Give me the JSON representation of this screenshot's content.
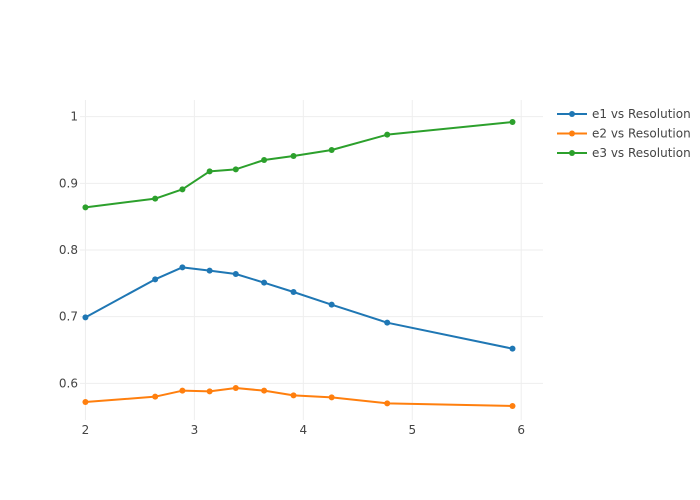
{
  "chart_data": {
    "type": "line",
    "title": "",
    "xlabel": "",
    "ylabel": "",
    "xlim": [
      1.95,
      6.2
    ],
    "ylim": [
      0.545,
      1.025
    ],
    "x_ticks": [
      2,
      3,
      4,
      5,
      6
    ],
    "y_ticks": [
      0.6,
      0.7,
      0.8,
      0.9,
      1
    ],
    "x_tick_labels": [
      "2",
      "3",
      "4",
      "5",
      "6"
    ],
    "y_tick_labels": [
      "0.6",
      "0.7",
      "0.8",
      "0.9",
      "1"
    ],
    "grid": true,
    "legend_position": "top-right",
    "series": [
      {
        "name": "e1 vs Resolution",
        "color": "#1f77b4",
        "points": [
          [
            2.0,
            0.699
          ],
          [
            2.64,
            0.756
          ],
          [
            2.89,
            0.774
          ],
          [
            3.14,
            0.769
          ],
          [
            3.38,
            0.764
          ],
          [
            3.64,
            0.751
          ],
          [
            3.91,
            0.737
          ],
          [
            4.26,
            0.718
          ],
          [
            4.77,
            0.691
          ],
          [
            5.92,
            0.652
          ]
        ]
      },
      {
        "name": "e2 vs Resolution",
        "color": "#ff7f0e",
        "points": [
          [
            2.0,
            0.572
          ],
          [
            2.64,
            0.58
          ],
          [
            2.89,
            0.589
          ],
          [
            3.14,
            0.588
          ],
          [
            3.38,
            0.593
          ],
          [
            3.64,
            0.589
          ],
          [
            3.91,
            0.582
          ],
          [
            4.26,
            0.579
          ],
          [
            4.77,
            0.57
          ],
          [
            5.92,
            0.566
          ]
        ]
      },
      {
        "name": "e3 vs Resolution",
        "color": "#2ca02c",
        "points": [
          [
            2.0,
            0.864
          ],
          [
            2.64,
            0.877
          ],
          [
            2.89,
            0.891
          ],
          [
            3.14,
            0.918
          ],
          [
            3.38,
            0.921
          ],
          [
            3.64,
            0.935
          ],
          [
            3.91,
            0.941
          ],
          [
            4.26,
            0.95
          ],
          [
            4.77,
            0.973
          ],
          [
            5.92,
            0.992
          ]
        ]
      }
    ]
  }
}
